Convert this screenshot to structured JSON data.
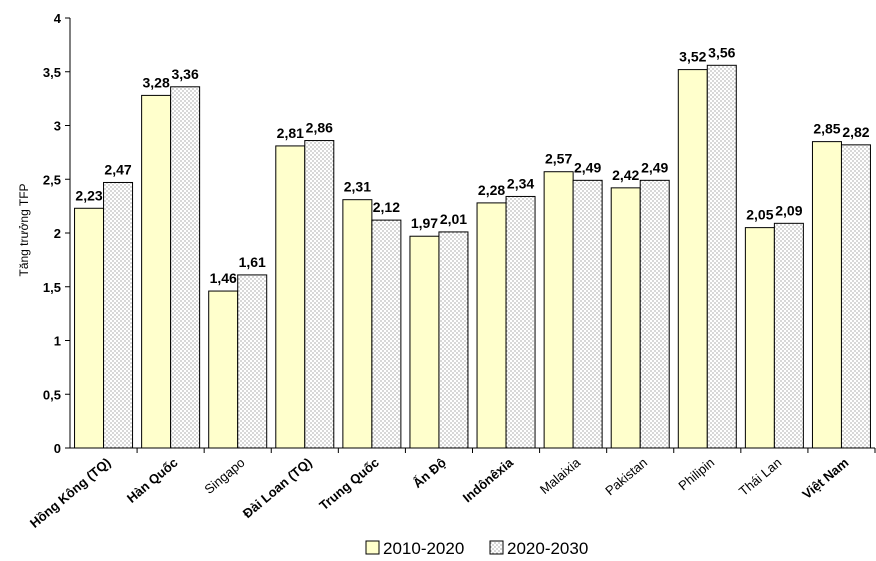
{
  "chart_data": {
    "type": "bar",
    "title": "",
    "xlabel": "",
    "ylabel": "Tăng trưởng TFP",
    "ylim": [
      0,
      4
    ],
    "yticks": [
      "0",
      "0,5",
      "1",
      "1,5",
      "2",
      "2,5",
      "3",
      "3,5",
      "4"
    ],
    "categories": [
      "Hồng Kông (TQ)",
      "Hàn Quốc",
      "Singapo",
      "Đài Loan (TQ)",
      "Trung Quốc",
      "Ấn Độ",
      "Indônêxia",
      "Malaixia",
      "Pakistan",
      "Philipin",
      "Thái Lan",
      "Việt Nam"
    ],
    "series": [
      {
        "name": "2010-2020",
        "values": [
          2.23,
          3.28,
          1.46,
          2.81,
          2.31,
          1.97,
          2.28,
          2.57,
          2.42,
          3.52,
          2.05,
          2.85
        ],
        "labels": [
          "2,23",
          "3,28",
          "1,46",
          "2,81",
          "2,31",
          "1,97",
          "2,28",
          "2,57",
          "2,42",
          "3,52",
          "2,05",
          "2,85"
        ],
        "color": "#FFFFCC"
      },
      {
        "name": "2020-2030",
        "values": [
          2.47,
          3.36,
          1.61,
          2.86,
          2.12,
          2.01,
          2.34,
          2.49,
          2.49,
          3.56,
          2.09,
          2.82
        ],
        "labels": [
          "2,47",
          "3,36",
          "1,61",
          "2,86",
          "2,12",
          "2,01",
          "2,34",
          "2,49",
          "2,49",
          "3,56",
          "2,09",
          "2,82"
        ],
        "color": "#FFFFFF",
        "pattern": "dots"
      }
    ],
    "grid": false,
    "legend_position": "bottom"
  }
}
